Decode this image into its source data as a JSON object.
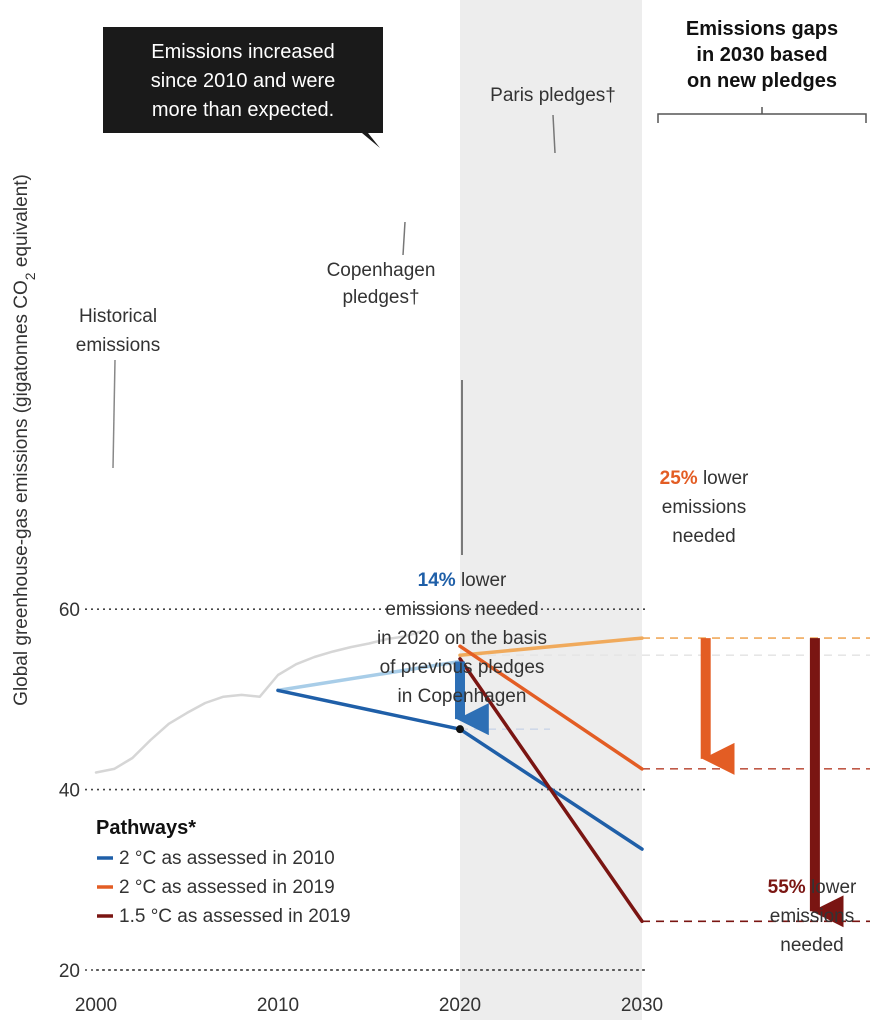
{
  "chart_data": {
    "type": "line",
    "title": "",
    "ylabel": "Global greenhouse-gas emissions (gigatonnes CO₂ equivalent)",
    "ylabel_parts": [
      "Global greenhouse-gas emissions (gigatonnes CO",
      "2",
      " equivalent)"
    ],
    "xlim": [
      2000,
      2030
    ],
    "ylim": [
      20,
      60
    ],
    "x_ticks": [
      2000,
      2010,
      2020,
      2030
    ],
    "y_ticks": [
      20,
      40,
      60
    ],
    "x_tick_labels": [
      "2000",
      "2010",
      "2020",
      "2030"
    ],
    "y_tick_labels": [
      "20",
      "40",
      "60"
    ],
    "grid": "dotted horizontal at 20, 40, 60",
    "shaded_region": {
      "x_start": 2020,
      "x_end": 2030,
      "color": "#ededed"
    },
    "series": [
      {
        "name": "Historical emissions",
        "color": "#d6d6d6",
        "points": [
          [
            2000,
            41.9
          ],
          [
            2001,
            42.3
          ],
          [
            2002,
            43.5
          ],
          [
            2003,
            45.5
          ],
          [
            2004,
            47.3
          ],
          [
            2005,
            48.5
          ],
          [
            2006,
            49.6
          ],
          [
            2007,
            50.3
          ],
          [
            2008,
            50.5
          ],
          [
            2009,
            50.3
          ],
          [
            2010,
            52.7
          ],
          [
            2011,
            53.9
          ],
          [
            2012,
            54.7
          ],
          [
            2013,
            55.3
          ],
          [
            2014,
            55.8
          ],
          [
            2015,
            56.2
          ],
          [
            2016,
            56.7
          ],
          [
            2017,
            57.0
          ],
          [
            2018,
            57.6
          ]
        ]
      },
      {
        "name": "Copenhagen pledges",
        "color": "#a8cde8",
        "points": [
          [
            2010,
            51.0
          ],
          [
            2020,
            54.2
          ]
        ]
      },
      {
        "name": "2 °C as assessed in 2010",
        "color": "#1f5fa8",
        "points": [
          [
            2010,
            51.0
          ],
          [
            2020,
            46.7
          ],
          [
            2030,
            33.4
          ]
        ]
      },
      {
        "name": "Paris pledges",
        "color": "#f0aa5c",
        "points": [
          [
            2020,
            54.9
          ],
          [
            2030,
            56.8
          ]
        ]
      },
      {
        "name": "2 °C as assessed in 2019",
        "color": "#e35d24",
        "points": [
          [
            2020,
            55.9
          ],
          [
            2030,
            42.3
          ]
        ]
      },
      {
        "name": "1.5 °C as assessed in 2019",
        "color": "#7a1512",
        "points": [
          [
            2020,
            54.5
          ],
          [
            2030,
            25.4
          ]
        ]
      }
    ],
    "gap_arrows": [
      {
        "color": "#2d6fb5",
        "x": 2020,
        "from": 54.2,
        "to": 46.7
      },
      {
        "color": "#e35d24",
        "x": 2033.5,
        "from": 56.8,
        "to": 42.3
      },
      {
        "color": "#7a1512",
        "x": 2039.5,
        "from": 56.8,
        "to": 25.4
      }
    ],
    "annotations": {
      "callout": [
        "Emissions increased",
        "since 2010 and were",
        "more than expected."
      ],
      "historical": [
        "Historical",
        "emissions"
      ],
      "copenhagen": [
        "Copenhagen",
        "pledges†"
      ],
      "paris": "Paris pledges†",
      "gaps_title": [
        "Emissions gaps",
        "in 2030 based",
        "on new pledges"
      ],
      "gap_2020": {
        "percent": "14%",
        "lines": [
          " lower",
          "emissions needed",
          "in 2020 on the basis",
          "of previous pledges",
          "in Copenhagen"
        ]
      },
      "gap_2c": {
        "percent": "25%",
        "lines": [
          " lower",
          "emissions",
          "needed"
        ]
      },
      "gap_15c": {
        "percent": "55%",
        "lines": [
          " lower",
          "emissions",
          "needed"
        ]
      }
    },
    "legend": {
      "title": "Pathways*",
      "position": "bottom-left",
      "items": [
        {
          "label": "2 °C as assessed in 2010",
          "color": "#1f5fa8"
        },
        {
          "label": "2 °C as assessed in 2019",
          "color": "#e35d24"
        },
        {
          "label": "1.5 °C as assessed in 2019",
          "color": "#7a1512"
        }
      ]
    }
  }
}
